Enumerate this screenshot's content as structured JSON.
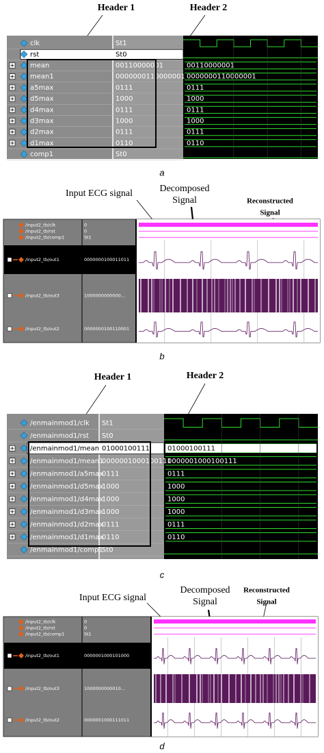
{
  "panels": [
    {
      "caption": "a",
      "annotations": [
        {
          "lines": [
            "Header 1"
          ]
        },
        {
          "lines": [
            "Header 2"
          ]
        }
      ],
      "signals": [
        {
          "name": "clk",
          "value": "St1"
        },
        {
          "name": "rst",
          "value": "St0"
        },
        {
          "name": "mean",
          "value": "00110000001",
          "wave": "00110000001"
        },
        {
          "name": "mean1",
          "value": "0000000110000001",
          "wave": "0000000110000001"
        },
        {
          "name": "a5max",
          "value": "0111",
          "wave": "0111"
        },
        {
          "name": "d5max",
          "value": "1000",
          "wave": "1000"
        },
        {
          "name": "d4max",
          "value": "0111",
          "wave": "0111"
        },
        {
          "name": "d3max",
          "value": "1000",
          "wave": "1000"
        },
        {
          "name": "d2max",
          "value": "0111",
          "wave": "0111"
        },
        {
          "name": "d1max",
          "value": "0110",
          "wave": "0110"
        },
        {
          "name": "comp1",
          "value": "St0"
        }
      ]
    },
    {
      "caption": "b",
      "annotations": [
        {
          "lines": [
            "Input ECG signal"
          ]
        },
        {
          "lines": [
            "Decomposed",
            "Signal"
          ]
        },
        {
          "lines": [
            "Reconstructed",
            "Signal"
          ]
        }
      ],
      "signals": [
        {
          "name": "/input2_tb/clk",
          "value": "0"
        },
        {
          "name": "/input2_tb/rst",
          "value": "0"
        },
        {
          "name": "/input2_tb/comp1",
          "value": "St1"
        },
        {
          "name": "/input2_tb/out1",
          "value": "0000000100011011"
        },
        {
          "name": "/input2_tb/out3",
          "value": "1000000000000..."
        },
        {
          "name": "/input2_tb/out2",
          "value": "0000000100110001"
        }
      ]
    },
    {
      "caption": "c",
      "annotations": [
        {
          "lines": [
            "Header 1"
          ]
        },
        {
          "lines": [
            "Header 2"
          ]
        }
      ],
      "signals": [
        {
          "name": "/enmainmod1/clk",
          "value": "St1"
        },
        {
          "name": "/enmainmod1/rst",
          "value": "St0"
        },
        {
          "name": "/enmainmod1/mean",
          "value": "01000100111",
          "wave": "01000100111"
        },
        {
          "name": "/enmainmod1/mean1",
          "value": "0000001000100111",
          "wave": "0000001000100111"
        },
        {
          "name": "/enmainmod1/a5max",
          "value": "0111",
          "wave": "0111"
        },
        {
          "name": "/enmainmod1/d5max",
          "value": "1000",
          "wave": "1000"
        },
        {
          "name": "/enmainmod1/d4max",
          "value": "1000",
          "wave": "1000"
        },
        {
          "name": "/enmainmod1/d3max",
          "value": "1000",
          "wave": "1000"
        },
        {
          "name": "/enmainmod1/d2max",
          "value": "0111",
          "wave": "0111"
        },
        {
          "name": "/enmainmod1/d1max",
          "value": "0110",
          "wave": "0110"
        },
        {
          "name": "/enmainmod1/comp1",
          "value": "St0"
        }
      ]
    },
    {
      "caption": "d",
      "annotations": [
        {
          "lines": [
            "Input ECG signal"
          ]
        },
        {
          "lines": [
            "Decomposed",
            "Signal"
          ]
        },
        {
          "lines": [
            "Reconstructed",
            "Signal"
          ]
        }
      ],
      "signals": [
        {
          "name": "/input2_tb/clk",
          "value": "0"
        },
        {
          "name": "/input2_tb/rst",
          "value": "0"
        },
        {
          "name": "/input2_tb/comp1",
          "value": "St1"
        },
        {
          "name": "/input2_tb/out1",
          "value": "0000001000101000"
        },
        {
          "name": "/input2_tb/out3",
          "value": "1000000000010..."
        },
        {
          "name": "/input2_tb/out2",
          "value": "0000001000111011"
        }
      ]
    }
  ]
}
